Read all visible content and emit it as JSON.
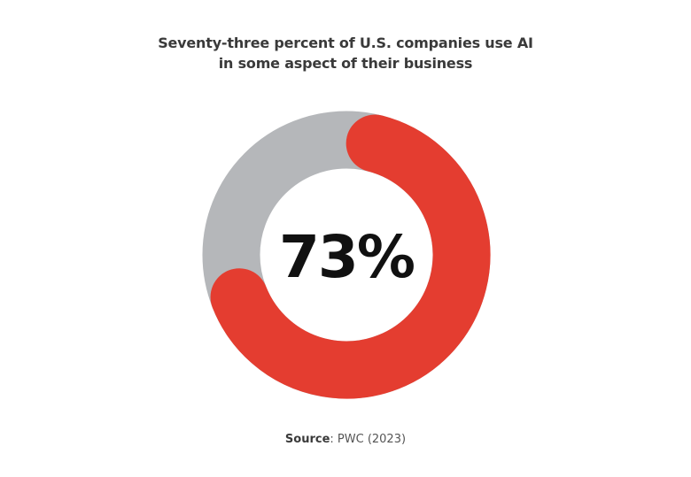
{
  "chart_data": {
    "type": "pie",
    "variant": "donut",
    "title": "Seventy-three percent of U.S. companies use AI in some aspect of their business",
    "title_lines": [
      "Seventy-three percent of U.S. companies use AI",
      "in some aspect of their business"
    ],
    "value_percent": 73,
    "center_label": "73%",
    "slices": [
      {
        "value": 73,
        "color": "#e43d30"
      },
      {
        "value": 27,
        "color": "#b5b7ba"
      }
    ],
    "source_label": "Source",
    "source_text": ": PWC (2023)"
  }
}
